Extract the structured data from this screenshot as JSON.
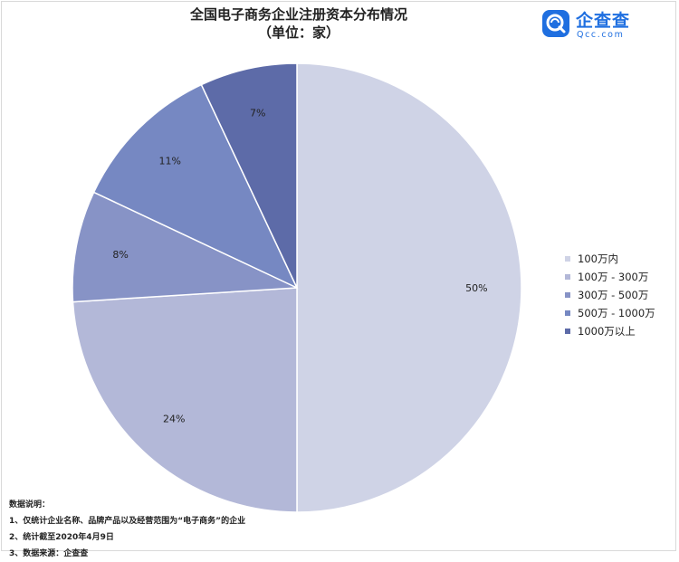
{
  "header": {
    "title_line1": "全国电子商务企业注册资本分布情况",
    "title_line2": "（单位：家）"
  },
  "logo": {
    "name_cn": "企查查",
    "name_en": "Qcc.com",
    "icon": "qcc-logo-icon",
    "brand_color": "#1f6fe0"
  },
  "chart_data": {
    "type": "pie",
    "title": "全国电子商务企业注册资本分布情况（单位：家）",
    "categories": [
      "100万内",
      "100万 - 300万",
      "300万 - 500万",
      "500万 - 1000万",
      "1000万以上"
    ],
    "values": [
      50,
      24,
      8,
      11,
      7
    ],
    "labels": [
      "50%",
      "24%",
      "8%",
      "11%",
      "7%"
    ],
    "colors": [
      "#cfd3e6",
      "#b3b8d8",
      "#8793c6",
      "#7688c2",
      "#5d6ba8"
    ],
    "legend_position": "right"
  },
  "notes": {
    "heading": "数据说明：",
    "lines": [
      "1、仅统计企业名称、品牌产品以及经营范围为“电子商务”的企业",
      "2、统计截至2020年4月9日",
      "3、数据来源：企查查"
    ]
  }
}
